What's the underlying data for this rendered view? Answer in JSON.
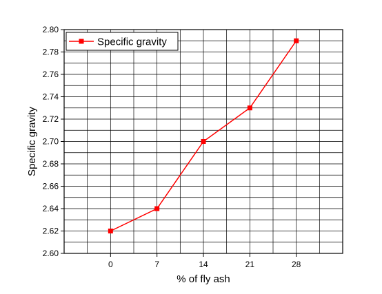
{
  "chart_data": {
    "type": "line",
    "x": [
      0,
      7,
      14,
      21,
      28
    ],
    "x_tick_labels": [
      "0",
      "7",
      "14",
      "21",
      "28"
    ],
    "series": [
      {
        "name": "Specific gravity",
        "values": [
          2.62,
          2.64,
          2.7,
          2.73,
          2.79
        ]
      }
    ],
    "xlabel": "% of fly ash",
    "ylabel": "Specific gravity",
    "xlim": [
      -7,
      35
    ],
    "ylim": [
      2.6,
      2.8
    ],
    "y_ticks": [
      2.6,
      2.62,
      2.64,
      2.66,
      2.68,
      2.7,
      2.72,
      2.74,
      2.76,
      2.78,
      2.8
    ],
    "y_tick_labels": [
      "2.60",
      "2.62",
      "2.64",
      "2.66",
      "2.68",
      "2.70",
      "2.72",
      "2.74",
      "2.76",
      "2.78",
      "2.80"
    ],
    "grid": true,
    "legend_position": "top-left",
    "series_color": "#ff0000",
    "marker": "square"
  }
}
